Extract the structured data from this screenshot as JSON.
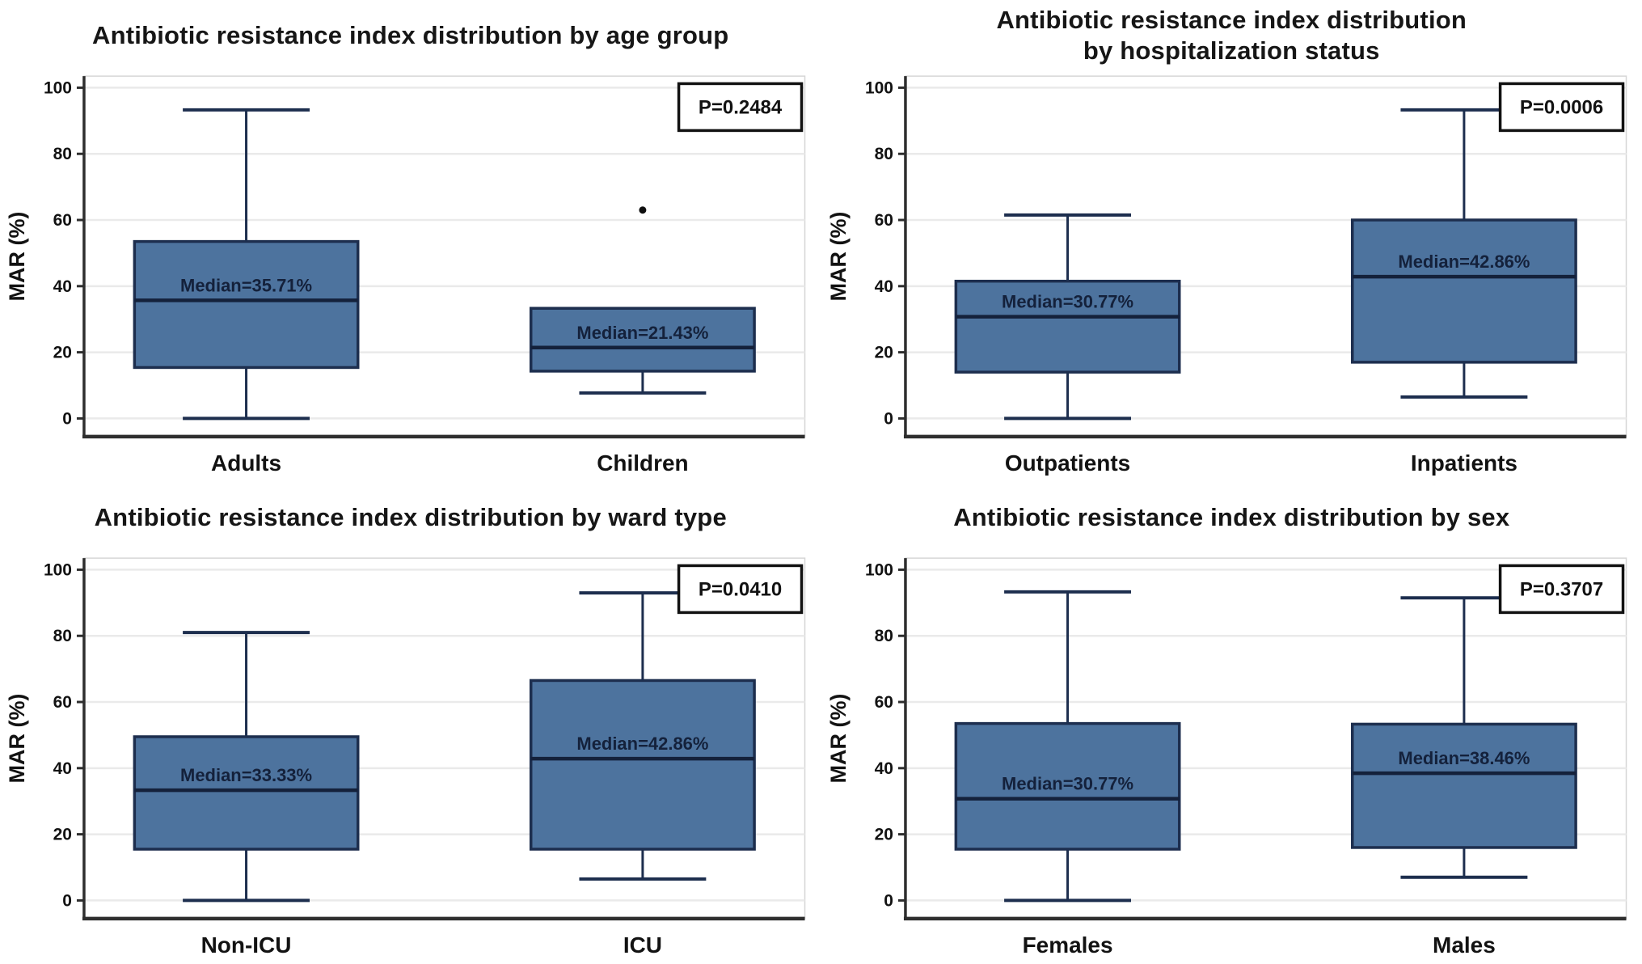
{
  "style": {
    "box_fill": "#4d739e",
    "box_line": "#1d2e4e",
    "median_line": "#14213b",
    "grid_color": "#eaeaea",
    "frame_color": "#d6d6d6",
    "axis_color": "#2e2e2e",
    "text_color": "#121212",
    "pbox_border": "#111111",
    "pbox_fill": "#ffffff",
    "outlier_color": "#0f0f0f"
  },
  "chart_data": [
    {
      "type": "box",
      "title": "Antibiotic resistance index distribution by age group",
      "ylabel": "MAR (%)",
      "yticks": [
        0,
        20,
        40,
        60,
        80,
        100
      ],
      "ylim": [
        -5.5,
        103.5
      ],
      "grid": true,
      "p_label": "P=0.2484",
      "categories": [
        "Adults",
        "Children"
      ],
      "boxes": [
        {
          "category": "Adults",
          "whisker_low": 0,
          "q1": 15.4,
          "median": 35.71,
          "q3": 53.5,
          "whisker_high": 93.3,
          "median_label": "Median=35.71%",
          "outliers": []
        },
        {
          "category": "Children",
          "whisker_low": 7.7,
          "q1": 14.3,
          "median": 21.43,
          "q3": 33.3,
          "whisker_high": null,
          "median_label": "Median=21.43%",
          "outliers": [
            63
          ]
        }
      ]
    },
    {
      "type": "box",
      "title": "Antibiotic resistance index distribution\nby hospitalization status",
      "ylabel": "MAR (%)",
      "yticks": [
        0,
        20,
        40,
        60,
        80,
        100
      ],
      "ylim": [
        -5.5,
        103.5
      ],
      "grid": true,
      "p_label": "P=0.0006",
      "categories": [
        "Outpatients",
        "Inpatients"
      ],
      "boxes": [
        {
          "category": "Outpatients",
          "whisker_low": 0,
          "q1": 14.0,
          "median": 30.77,
          "q3": 41.5,
          "whisker_high": 61.5,
          "median_label": "Median=30.77%",
          "outliers": []
        },
        {
          "category": "Inpatients",
          "whisker_low": 6.5,
          "q1": 17.0,
          "median": 42.86,
          "q3": 60.0,
          "whisker_high": 93.3,
          "median_label": "Median=42.86%",
          "outliers": []
        }
      ]
    },
    {
      "type": "box",
      "title": "Antibiotic resistance index distribution by ward type",
      "ylabel": "MAR (%)",
      "yticks": [
        0,
        20,
        40,
        60,
        80,
        100
      ],
      "ylim": [
        -5.5,
        103.5
      ],
      "grid": true,
      "p_label": "P=0.0410",
      "categories": [
        "Non-ICU",
        "ICU"
      ],
      "boxes": [
        {
          "category": "Non-ICU",
          "whisker_low": 0,
          "q1": 15.5,
          "median": 33.33,
          "q3": 49.5,
          "whisker_high": 81.0,
          "median_label": "Median=33.33%",
          "outliers": []
        },
        {
          "category": "ICU",
          "whisker_low": 6.5,
          "q1": 15.5,
          "median": 42.86,
          "q3": 66.5,
          "whisker_high": 93.0,
          "median_label": "Median=42.86%",
          "outliers": []
        }
      ]
    },
    {
      "type": "box",
      "title": "Antibiotic resistance index distribution by sex",
      "ylabel": "MAR (%)",
      "yticks": [
        0,
        20,
        40,
        60,
        80,
        100
      ],
      "ylim": [
        -5.5,
        103.5
      ],
      "grid": true,
      "p_label": "P=0.3707",
      "categories": [
        "Females",
        "Males"
      ],
      "boxes": [
        {
          "category": "Females",
          "whisker_low": 0,
          "q1": 15.5,
          "median": 30.77,
          "q3": 53.5,
          "whisker_high": 93.3,
          "median_label": "Median=30.77%",
          "outliers": []
        },
        {
          "category": "Males",
          "whisker_low": 7.0,
          "q1": 16.0,
          "median": 38.46,
          "q3": 53.3,
          "whisker_high": 91.5,
          "median_label": "Median=38.46%",
          "outliers": []
        }
      ]
    }
  ]
}
